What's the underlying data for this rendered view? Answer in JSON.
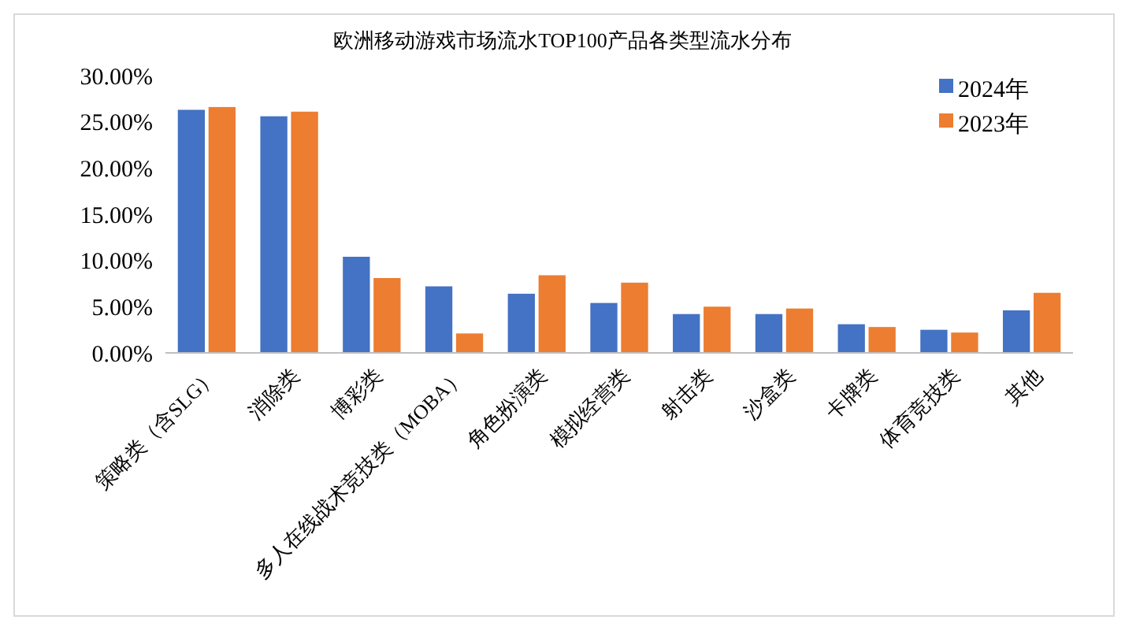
{
  "chart_data": {
    "type": "bar",
    "title": "欧洲移动游戏市场流水TOP100产品各类型流水分布",
    "categories": [
      "策略类（含SLG）",
      "消除类",
      "博彩类",
      "多人在线战术竞技类（MOBA）",
      "角色扮演类",
      "模拟经营类",
      "射击类",
      "沙盒类",
      "卡牌类",
      "体育竞技类",
      "其他"
    ],
    "series": [
      {
        "name": "2024年",
        "color": "#4472c4",
        "values": [
          26.3,
          25.6,
          10.4,
          7.2,
          6.4,
          5.4,
          4.2,
          4.2,
          3.1,
          2.5,
          4.6
        ]
      },
      {
        "name": "2023年",
        "color": "#ed7d31",
        "values": [
          26.6,
          26.1,
          8.1,
          2.1,
          8.4,
          7.6,
          5.0,
          4.8,
          2.8,
          2.2,
          6.5
        ]
      }
    ],
    "ylim": [
      0,
      30
    ],
    "yticks": [
      {
        "value": 0,
        "label": "0.00%"
      },
      {
        "value": 5,
        "label": "5.00%"
      },
      {
        "value": 10,
        "label": "10.00%"
      },
      {
        "value": 15,
        "label": "15.00%"
      },
      {
        "value": 20,
        "label": "20.00%"
      },
      {
        "value": 25,
        "label": "25.00%"
      },
      {
        "value": 30,
        "label": "30.00%"
      }
    ],
    "grid": false,
    "legend": "top right"
  }
}
